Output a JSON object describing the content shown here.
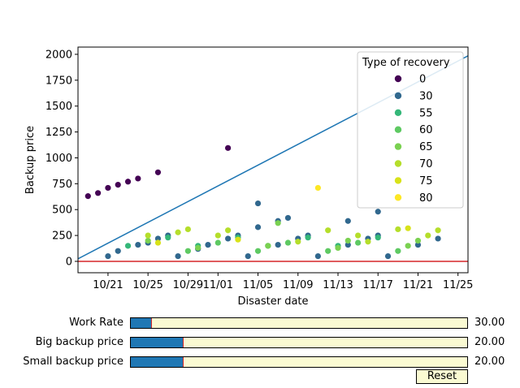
{
  "chart_data": {
    "type": "scatter",
    "title": "",
    "xlabel": "Disaster date",
    "ylabel": "Backup price",
    "xlim": [
      "2019-10-18",
      "2019-11-26"
    ],
    "ylim": [
      -110,
      2070
    ],
    "x_ticks": [
      "10/21",
      "10/25",
      "10/29",
      "11/01",
      "11/05",
      "11/09",
      "11/13",
      "11/17",
      "11/21",
      "11/25"
    ],
    "x_tick_dates": [
      "2019-10-21",
      "2019-10-25",
      "2019-10-29",
      "2019-11-01",
      "2019-11-05",
      "2019-11-09",
      "2019-11-13",
      "2019-11-17",
      "2019-11-21",
      "2019-11-25"
    ],
    "y_ticks": [
      "0",
      "250",
      "500",
      "750",
      "1000",
      "1250",
      "1500",
      "1750",
      "2000"
    ],
    "y_tick_values": [
      0,
      250,
      500,
      750,
      1000,
      1250,
      1500,
      1750,
      2000
    ],
    "grid": false,
    "legend": {
      "title": "Type of recovery",
      "placement": "top-right",
      "entries": [
        {
          "label": "0",
          "color": "#440154"
        },
        {
          "label": "30",
          "color": "#31688e"
        },
        {
          "label": "55",
          "color": "#35b779"
        },
        {
          "label": "60",
          "color": "#5ec962"
        },
        {
          "label": "65",
          "color": "#7ad151"
        },
        {
          "label": "70",
          "color": "#b5de2b"
        },
        {
          "label": "75",
          "color": "#d8e219"
        },
        {
          "label": "80",
          "color": "#fde725"
        }
      ]
    },
    "series": [
      {
        "name": "0",
        "color": "#440154",
        "points": [
          [
            "2019-10-19",
            630
          ],
          [
            "2019-10-20",
            660
          ],
          [
            "2019-10-21",
            710
          ],
          [
            "2019-10-22",
            740
          ],
          [
            "2019-10-23",
            770
          ],
          [
            "2019-10-24",
            800
          ],
          [
            "2019-10-26",
            860
          ],
          [
            "2019-11-02",
            1095
          ]
        ]
      },
      {
        "name": "30",
        "color": "#31688e",
        "points": [
          [
            "2019-10-21",
            50
          ],
          [
            "2019-10-22",
            100
          ],
          [
            "2019-10-24",
            160
          ],
          [
            "2019-10-25",
            180
          ],
          [
            "2019-10-26",
            220
          ],
          [
            "2019-10-27",
            250
          ],
          [
            "2019-10-28",
            50
          ],
          [
            "2019-10-30",
            120
          ],
          [
            "2019-10-31",
            160
          ],
          [
            "2019-11-02",
            220
          ],
          [
            "2019-11-03",
            250
          ],
          [
            "2019-11-04",
            50
          ],
          [
            "2019-11-05",
            330
          ],
          [
            "2019-11-05",
            560
          ],
          [
            "2019-11-07",
            160
          ],
          [
            "2019-11-07",
            390
          ],
          [
            "2019-11-08",
            420
          ],
          [
            "2019-11-09",
            220
          ],
          [
            "2019-11-10",
            250
          ],
          [
            "2019-11-11",
            50
          ],
          [
            "2019-11-14",
            160
          ],
          [
            "2019-11-14",
            390
          ],
          [
            "2019-11-16",
            220
          ],
          [
            "2019-11-17",
            250
          ],
          [
            "2019-11-17",
            480
          ],
          [
            "2019-11-18",
            50
          ],
          [
            "2019-11-21",
            160
          ],
          [
            "2019-11-23",
            220
          ]
        ]
      },
      {
        "name": "55",
        "color": "#35b779",
        "points": [
          [
            "2019-10-23",
            150
          ],
          [
            "2019-10-27",
            230
          ],
          [
            "2019-10-30",
            150
          ],
          [
            "2019-11-03",
            230
          ],
          [
            "2019-11-06",
            150
          ],
          [
            "2019-11-10",
            230
          ],
          [
            "2019-11-13",
            150
          ],
          [
            "2019-11-17",
            230
          ]
        ]
      },
      {
        "name": "60",
        "color": "#5ec962",
        "points": [
          [
            "2019-10-29",
            100
          ],
          [
            "2019-11-01",
            180
          ],
          [
            "2019-11-05",
            100
          ],
          [
            "2019-11-08",
            180
          ],
          [
            "2019-11-12",
            100
          ],
          [
            "2019-11-15",
            180
          ],
          [
            "2019-11-19",
            100
          ]
        ]
      },
      {
        "name": "65",
        "color": "#7ad151",
        "points": [
          [
            "2019-10-25",
            200
          ],
          [
            "2019-10-30",
            130
          ],
          [
            "2019-11-06",
            150
          ],
          [
            "2019-11-07",
            370
          ],
          [
            "2019-11-13",
            130
          ],
          [
            "2019-11-14",
            200
          ],
          [
            "2019-11-20",
            150
          ],
          [
            "2019-11-21",
            200
          ]
        ]
      },
      {
        "name": "70",
        "color": "#b5de2b",
        "points": [
          [
            "2019-10-25",
            250
          ],
          [
            "2019-10-28",
            280
          ],
          [
            "2019-10-29",
            310
          ],
          [
            "2019-11-01",
            250
          ],
          [
            "2019-11-02",
            300
          ],
          [
            "2019-11-09",
            190
          ],
          [
            "2019-11-12",
            300
          ],
          [
            "2019-11-15",
            250
          ],
          [
            "2019-11-16",
            190
          ],
          [
            "2019-11-19",
            310
          ],
          [
            "2019-11-22",
            250
          ],
          [
            "2019-11-23",
            300
          ]
        ]
      },
      {
        "name": "75",
        "color": "#d8e219",
        "points": [
          [
            "2019-10-26",
            180
          ],
          [
            "2019-11-03",
            210
          ],
          [
            "2019-11-20",
            320
          ]
        ]
      },
      {
        "name": "80",
        "color": "#fde725",
        "points": [
          [
            "2019-11-11",
            710
          ]
        ]
      }
    ],
    "lines": [
      {
        "color": "#1f77b4",
        "points": [
          [
            "2019-10-18",
            25
          ],
          [
            "2019-11-26",
            1985
          ]
        ]
      },
      {
        "color": "#d62728",
        "points": [
          [
            "2019-10-18",
            0
          ],
          [
            "2019-11-26",
            0
          ]
        ]
      }
    ]
  },
  "sliders": [
    {
      "label": "Work Rate",
      "value_text": "30.00",
      "fraction": 0.06
    },
    {
      "label": "Big backup price",
      "value_text": "20.00",
      "fraction": 0.155
    },
    {
      "label": "Small backup price",
      "value_text": "20.00",
      "fraction": 0.155
    }
  ],
  "reset_label": "Reset"
}
